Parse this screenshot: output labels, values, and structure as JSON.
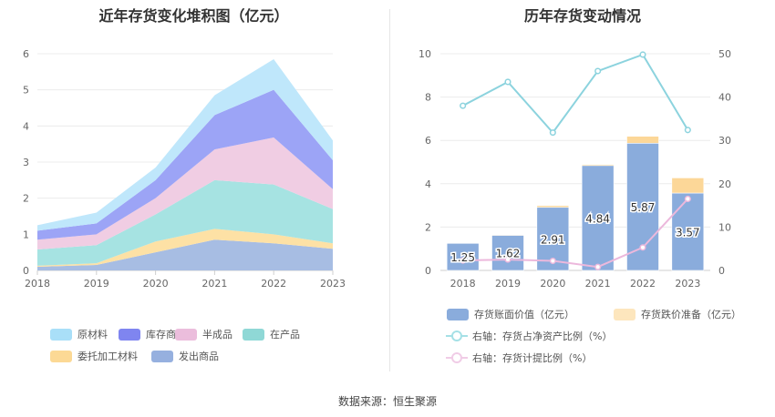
{
  "source": "数据来源：恒生聚源",
  "chart_data": [
    {
      "type": "area",
      "title": "近年存货变化堆积图（亿元）",
      "x": [
        "2018",
        "2019",
        "2020",
        "2021",
        "2022",
        "2023"
      ],
      "ylim": [
        0,
        6
      ],
      "yticks": [
        "0",
        "1",
        "2",
        "3",
        "4",
        "5",
        "6"
      ],
      "stacked": true,
      "grid": true,
      "legend_position": "bottom",
      "series": [
        {
          "name": "发出商品",
          "color": "#a7bde3",
          "values": [
            0.1,
            0.15,
            0.5,
            0.85,
            0.75,
            0.6
          ]
        },
        {
          "name": "委托加工材料",
          "color": "#fde1a5",
          "values": [
            0.03,
            0.05,
            0.3,
            0.3,
            0.25,
            0.15
          ]
        },
        {
          "name": "在产品",
          "color": "#a6e3e2",
          "values": [
            0.45,
            0.5,
            0.75,
            1.35,
            1.38,
            0.95
          ]
        },
        {
          "name": "半成品",
          "color": "#f0cde3",
          "values": [
            0.27,
            0.3,
            0.45,
            0.85,
            1.3,
            0.55
          ]
        },
        {
          "name": "库存商品",
          "color": "#9ca4f6",
          "values": [
            0.25,
            0.3,
            0.5,
            0.95,
            1.32,
            0.8
          ]
        },
        {
          "name": "原材料",
          "color": "#bfe7fb",
          "values": [
            0.15,
            0.3,
            0.35,
            0.55,
            0.85,
            0.55
          ]
        }
      ],
      "legend": [
        {
          "name": "原材料",
          "color": "#a9dff8"
        },
        {
          "name": "库存商品",
          "color": "#7f85f0"
        },
        {
          "name": "半成品",
          "color": "#ebbddc"
        },
        {
          "name": "在产品",
          "color": "#8fd8d6"
        },
        {
          "name": "委托加工材料",
          "color": "#fcd995"
        },
        {
          "name": "发出商品",
          "color": "#96b0df"
        }
      ]
    },
    {
      "type": "bar",
      "title": "历年存货变动情况",
      "categories": [
        "2018",
        "2019",
        "2020",
        "2021",
        "2022",
        "2023"
      ],
      "ylim": [
        0,
        10
      ],
      "yticks": [
        "0",
        "2",
        "4",
        "6",
        "8",
        "10"
      ],
      "y2lim": [
        0,
        50
      ],
      "y2ticks": [
        "0",
        "10",
        "20",
        "30",
        "40",
        "50"
      ],
      "stacked": true,
      "series": [
        {
          "name": "存货账面价值（亿元）",
          "axis": "left",
          "type": "bar",
          "color": "#8aacdc",
          "values": [
            1.25,
            1.62,
            2.91,
            4.84,
            5.87,
            3.57
          ],
          "labels": [
            "1.25",
            "1.62",
            "2.91",
            "4.84",
            "5.87",
            "3.57"
          ]
        },
        {
          "name": "存货跌价准备（亿元）",
          "axis": "left",
          "type": "bar",
          "color": "#fcd798",
          "values": [
            0.02,
            0.03,
            0.08,
            0.05,
            0.32,
            0.7
          ]
        },
        {
          "name": "右轴：存货占净资产比例（%）",
          "axis": "right",
          "type": "line",
          "color": "#8cd3de",
          "values": [
            38.0,
            43.5,
            31.8,
            46.0,
            49.8,
            32.4
          ]
        },
        {
          "name": "右轴：存货计提比例（%）",
          "axis": "right",
          "type": "line",
          "color": "#ecb8dc",
          "values": [
            2.3,
            2.5,
            2.2,
            0.8,
            5.3,
            16.5
          ]
        }
      ],
      "legend": [
        {
          "name": "存货账面价值（亿元）",
          "color": "#8aacdc",
          "kind": "box"
        },
        {
          "name": "存货跌价准备（亿元）",
          "color": "#fde6bd",
          "kind": "box"
        },
        {
          "name": "右轴：存货占净资产比例（%）",
          "color": "#a5e0e6",
          "kind": "ring"
        },
        {
          "name": "右轴：存货计提比例（%）",
          "color": "#f0cce6",
          "kind": "ring"
        }
      ]
    }
  ]
}
